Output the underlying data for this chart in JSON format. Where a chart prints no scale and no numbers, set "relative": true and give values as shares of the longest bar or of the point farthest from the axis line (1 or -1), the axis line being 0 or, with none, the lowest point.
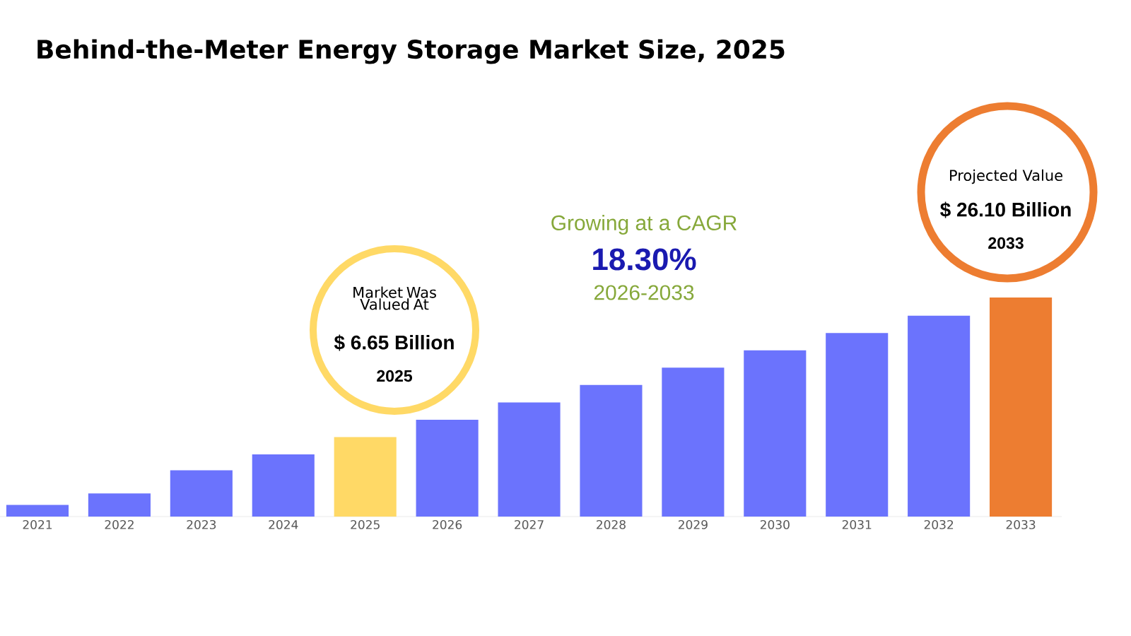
{
  "chart_data": {
    "type": "bar",
    "title": "Behind-the-Meter Energy Storage Market Size, 2025",
    "relative": true,
    "categories": [
      "2021",
      "2022",
      "2023",
      "2024",
      "2025",
      "2026",
      "2027",
      "2028",
      "2029",
      "2030",
      "2031",
      "2032",
      "2033"
    ],
    "values": [
      0.053,
      0.106,
      0.211,
      0.284,
      0.363,
      0.442,
      0.521,
      0.601,
      0.68,
      0.759,
      0.838,
      0.917,
      1
    ],
    "colors": [
      "#6b73fd",
      "#6b73fd",
      "#6b73fd",
      "#6b73fd",
      "#ffd966",
      "#6b73fd",
      "#6b73fd",
      "#6b73fd",
      "#6b73fd",
      "#6b73fd",
      "#6b73fd",
      "#6b73fd",
      "#ed7d31"
    ],
    "annotations": [
      "Market Was Valued At",
      "$ 6.65 Billion",
      "2025",
      "Growing at a CAGR",
      "18.30%",
      "2026-2033",
      "Projected Value",
      "$ 26.10 Billion",
      "2033"
    ]
  }
}
